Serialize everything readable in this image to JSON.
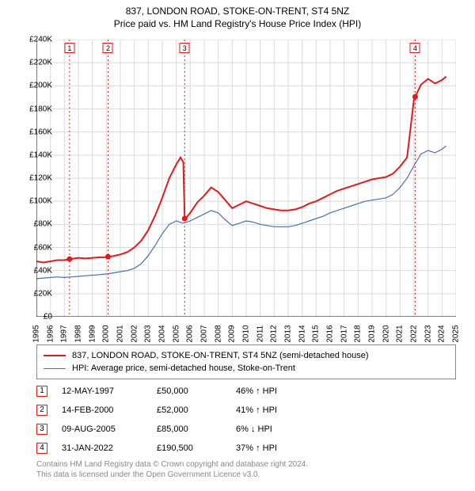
{
  "title": {
    "line1": "837, LONDON ROAD, STOKE-ON-TRENT, ST4 5NZ",
    "line2": "Price paid vs. HM Land Registry's House Price Index (HPI)",
    "fontsize": 12,
    "color": "#000000"
  },
  "chart": {
    "type": "line",
    "background_color": "#ffffff",
    "grid_color": "#d9d9d9",
    "axis_color": "#000000",
    "x": {
      "min": 1995,
      "max": 2025,
      "tick_step": 1,
      "label_fontsize": 10,
      "label_rotation": -90
    },
    "y": {
      "min": 0,
      "max": 240000,
      "tick_step": 20000,
      "label_prefix": "£",
      "label_suffix": "K",
      "label_fontsize": 10
    },
    "series": [
      {
        "id": "price_paid",
        "label": "837, LONDON ROAD, STOKE-ON-TRENT, ST4 5NZ (semi-detached house)",
        "color": "#e31a1c",
        "line_width": 2,
        "points": [
          [
            1995.0,
            48000
          ],
          [
            1995.5,
            47000
          ],
          [
            1996.0,
            48000
          ],
          [
            1996.5,
            49000
          ],
          [
            1997.0,
            49000
          ],
          [
            1997.37,
            50000
          ],
          [
            1997.7,
            50500
          ],
          [
            1998.0,
            51000
          ],
          [
            1998.5,
            50500
          ],
          [
            1999.0,
            51000
          ],
          [
            1999.5,
            51500
          ],
          [
            2000.0,
            51500
          ],
          [
            2000.12,
            52000
          ],
          [
            2000.5,
            52500
          ],
          [
            2001.0,
            54000
          ],
          [
            2001.5,
            56000
          ],
          [
            2002.0,
            60000
          ],
          [
            2002.5,
            66000
          ],
          [
            2003.0,
            75000
          ],
          [
            2003.5,
            88000
          ],
          [
            2004.0,
            103000
          ],
          [
            2004.5,
            120000
          ],
          [
            2005.0,
            132000
          ],
          [
            2005.3,
            138000
          ],
          [
            2005.5,
            134000
          ],
          [
            2005.6,
            85000
          ],
          [
            2005.7,
            85500
          ],
          [
            2006.0,
            90000
          ],
          [
            2006.5,
            99000
          ],
          [
            2007.0,
            105000
          ],
          [
            2007.5,
            112000
          ],
          [
            2008.0,
            108000
          ],
          [
            2008.5,
            101000
          ],
          [
            2009.0,
            94000
          ],
          [
            2009.5,
            97000
          ],
          [
            2010.0,
            100000
          ],
          [
            2010.5,
            98000
          ],
          [
            2011.0,
            96000
          ],
          [
            2011.5,
            94000
          ],
          [
            2012.0,
            93000
          ],
          [
            2012.5,
            92000
          ],
          [
            2013.0,
            92000
          ],
          [
            2013.5,
            93000
          ],
          [
            2014.0,
            95000
          ],
          [
            2014.5,
            98000
          ],
          [
            2015.0,
            100000
          ],
          [
            2015.5,
            103000
          ],
          [
            2016.0,
            106000
          ],
          [
            2016.5,
            109000
          ],
          [
            2017.0,
            111000
          ],
          [
            2017.5,
            113000
          ],
          [
            2018.0,
            115000
          ],
          [
            2018.5,
            117000
          ],
          [
            2019.0,
            119000
          ],
          [
            2019.5,
            120000
          ],
          [
            2020.0,
            121000
          ],
          [
            2020.5,
            124000
          ],
          [
            2021.0,
            130000
          ],
          [
            2021.5,
            138000
          ],
          [
            2022.0,
            189000
          ],
          [
            2022.08,
            190500
          ],
          [
            2022.5,
            201000
          ],
          [
            2023.0,
            206000
          ],
          [
            2023.5,
            202000
          ],
          [
            2024.0,
            205000
          ],
          [
            2024.3,
            208000
          ]
        ],
        "sale_markers": [
          {
            "x": 1997.37,
            "y": 50000
          },
          {
            "x": 2000.12,
            "y": 52000
          },
          {
            "x": 2005.6,
            "y": 85000
          },
          {
            "x": 2022.08,
            "y": 190500
          }
        ]
      },
      {
        "id": "hpi",
        "label": "HPI: Average price, semi-detached house, Stoke-on-Trent",
        "color": "#4a6fb3",
        "line_width": 1.2,
        "points": [
          [
            1995.0,
            33000
          ],
          [
            1995.5,
            33500
          ],
          [
            1996.0,
            34000
          ],
          [
            1996.5,
            34500
          ],
          [
            1997.0,
            34000
          ],
          [
            1997.5,
            34500
          ],
          [
            1998.0,
            35000
          ],
          [
            1998.5,
            35500
          ],
          [
            1999.0,
            36000
          ],
          [
            1999.5,
            36500
          ],
          [
            2000.0,
            37000
          ],
          [
            2000.5,
            38000
          ],
          [
            2001.0,
            39000
          ],
          [
            2001.5,
            40000
          ],
          [
            2002.0,
            42000
          ],
          [
            2002.5,
            46000
          ],
          [
            2003.0,
            53000
          ],
          [
            2003.5,
            62000
          ],
          [
            2004.0,
            72000
          ],
          [
            2004.5,
            80000
          ],
          [
            2005.0,
            83000
          ],
          [
            2005.5,
            81000
          ],
          [
            2006.0,
            83000
          ],
          [
            2006.5,
            86000
          ],
          [
            2007.0,
            89000
          ],
          [
            2007.5,
            92000
          ],
          [
            2008.0,
            90000
          ],
          [
            2008.5,
            84000
          ],
          [
            2009.0,
            79000
          ],
          [
            2009.5,
            81000
          ],
          [
            2010.0,
            83000
          ],
          [
            2010.5,
            82000
          ],
          [
            2011.0,
            80000
          ],
          [
            2011.5,
            79000
          ],
          [
            2012.0,
            78000
          ],
          [
            2012.5,
            78000
          ],
          [
            2013.0,
            78000
          ],
          [
            2013.5,
            79000
          ],
          [
            2014.0,
            81000
          ],
          [
            2014.5,
            83000
          ],
          [
            2015.0,
            85000
          ],
          [
            2015.5,
            87000
          ],
          [
            2016.0,
            90000
          ],
          [
            2016.5,
            92000
          ],
          [
            2017.0,
            94000
          ],
          [
            2017.5,
            96000
          ],
          [
            2018.0,
            98000
          ],
          [
            2018.5,
            100000
          ],
          [
            2019.0,
            101000
          ],
          [
            2019.5,
            102000
          ],
          [
            2020.0,
            103000
          ],
          [
            2020.5,
            106000
          ],
          [
            2021.0,
            112000
          ],
          [
            2021.5,
            120000
          ],
          [
            2022.0,
            131000
          ],
          [
            2022.5,
            141000
          ],
          [
            2023.0,
            144000
          ],
          [
            2023.5,
            142000
          ],
          [
            2024.0,
            145000
          ],
          [
            2024.3,
            148000
          ]
        ]
      }
    ],
    "event_lines": [
      {
        "id": 1,
        "x": 1997.37,
        "color": "#e31a1c",
        "dash": "2,3"
      },
      {
        "id": 2,
        "x": 2000.12,
        "color": "#e31a1c",
        "dash": "2,3"
      },
      {
        "id": 3,
        "x": 2005.6,
        "color": "#e31a1c",
        "dash": "2,3"
      },
      {
        "id": 4,
        "x": 2022.08,
        "color": "#e31a1c",
        "dash": "2,3"
      }
    ],
    "marker_box_border": "#e31a1c",
    "sale_marker_fill": "#e31a1c",
    "sale_marker_radius": 3.5
  },
  "legend": {
    "border_color": "#888888",
    "fontsize": 11,
    "items": [
      {
        "label_bind": "chart.series.0.label",
        "color_bind": "chart.series.0.color"
      },
      {
        "label_bind": "chart.series.1.label",
        "color_bind": "chart.series.1.color"
      }
    ]
  },
  "events": [
    {
      "n": "1",
      "date": "12-MAY-1997",
      "price": "£50,000",
      "diff": "46% ↑ HPI"
    },
    {
      "n": "2",
      "date": "14-FEB-2000",
      "price": "£52,000",
      "diff": "41% ↑ HPI"
    },
    {
      "n": "3",
      "date": "09-AUG-2005",
      "price": "£85,000",
      "diff": "6% ↓ HPI"
    },
    {
      "n": "4",
      "date": "31-JAN-2022",
      "price": "£190,500",
      "diff": "37% ↑ HPI"
    }
  ],
  "footer": {
    "line1": "Contains HM Land Registry data © Crown copyright and database right 2024.",
    "line2": "This data is licensed under the Open Government Licence v3.0.",
    "color": "#888888",
    "fontsize": 10
  }
}
